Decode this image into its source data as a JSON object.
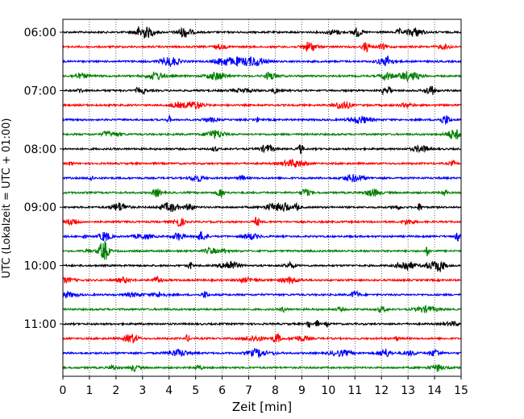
{
  "chart_data": {
    "type": "line",
    "xlabel": "Zeit  [min]",
    "ylabel": "UTC (Lokalzeit = UTC + 01:00)",
    "xlim": [
      0,
      15
    ],
    "x_ticks": [
      0,
      1,
      2,
      3,
      4,
      5,
      6,
      7,
      8,
      9,
      10,
      11,
      12,
      13,
      14,
      15
    ],
    "y_ticks": [
      "06:00",
      "07:00",
      "08:00",
      "09:00",
      "10:00",
      "11:00"
    ],
    "vertical_grid": "dotted",
    "trace_interval_minutes": 15,
    "colors": [
      "#000000",
      "#ff0000",
      "#0000ff",
      "#008000"
    ],
    "traces": [
      {
        "start": "06:00",
        "color": "#000000"
      },
      {
        "start": "06:15",
        "color": "#ff0000"
      },
      {
        "start": "06:30",
        "color": "#0000ff"
      },
      {
        "start": "06:45",
        "color": "#008000"
      },
      {
        "start": "07:00",
        "color": "#000000"
      },
      {
        "start": "07:15",
        "color": "#ff0000"
      },
      {
        "start": "07:30",
        "color": "#0000ff"
      },
      {
        "start": "07:45",
        "color": "#008000"
      },
      {
        "start": "08:00",
        "color": "#000000"
      },
      {
        "start": "08:15",
        "color": "#ff0000"
      },
      {
        "start": "08:30",
        "color": "#0000ff"
      },
      {
        "start": "08:45",
        "color": "#008000"
      },
      {
        "start": "09:00",
        "color": "#000000"
      },
      {
        "start": "09:15",
        "color": "#ff0000"
      },
      {
        "start": "09:30",
        "color": "#0000ff"
      },
      {
        "start": "09:45",
        "color": "#008000"
      },
      {
        "start": "10:00",
        "color": "#000000"
      },
      {
        "start": "10:15",
        "color": "#ff0000"
      },
      {
        "start": "10:30",
        "color": "#0000ff"
      },
      {
        "start": "10:45",
        "color": "#008000"
      },
      {
        "start": "11:00",
        "color": "#000000"
      },
      {
        "start": "11:15",
        "color": "#ff0000"
      },
      {
        "start": "11:30",
        "color": "#0000ff"
      },
      {
        "start": "11:45",
        "color": "#008000"
      }
    ]
  }
}
